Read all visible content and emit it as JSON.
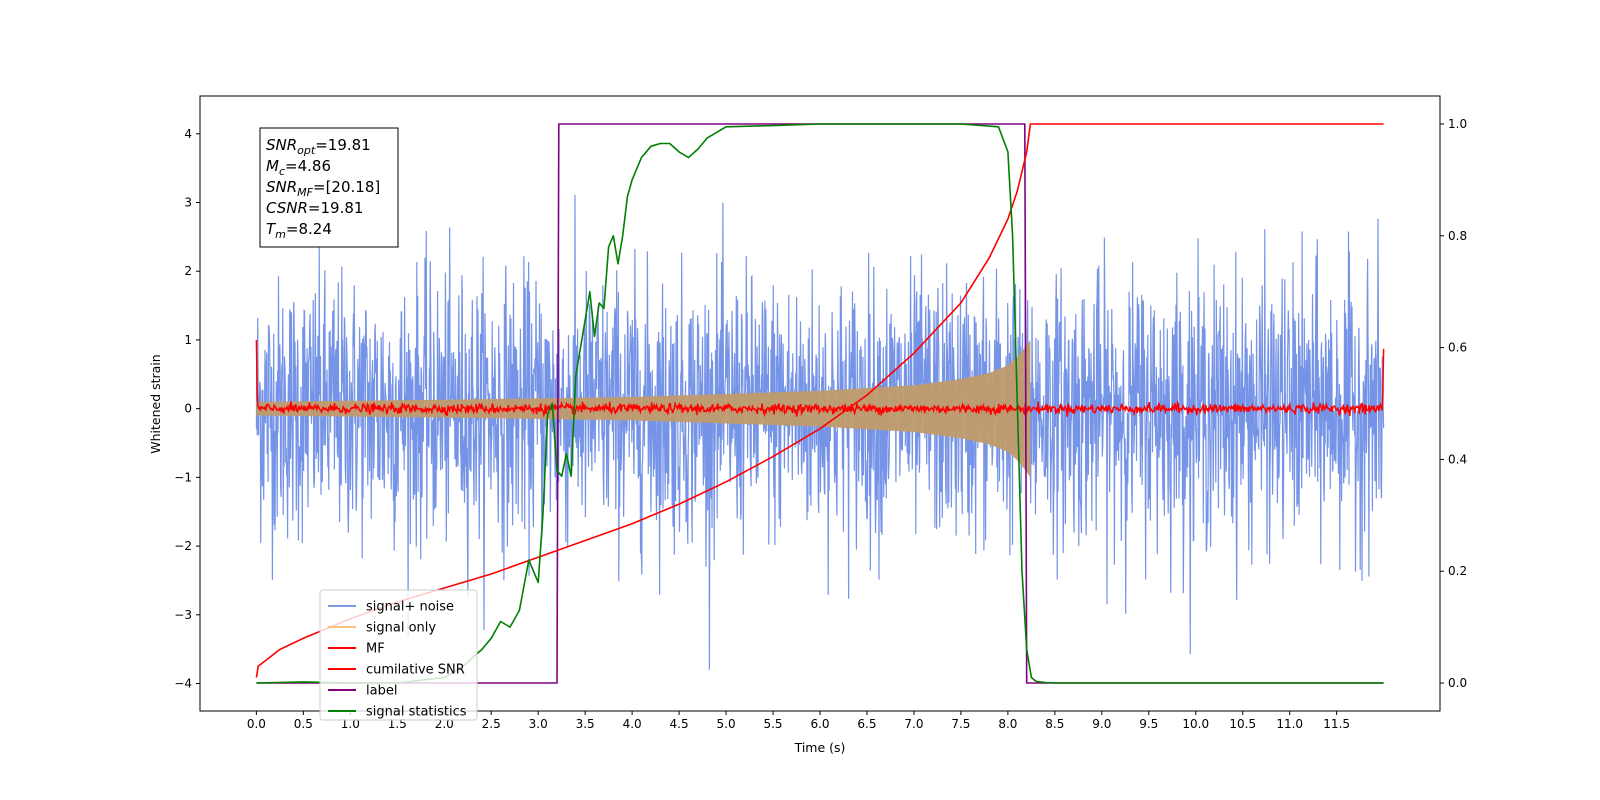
{
  "chart_data": {
    "type": "line",
    "title": "",
    "xlabel": "Time (s)",
    "ylabel": "Whitened strain",
    "xlim": [
      -0.6,
      12.6
    ],
    "ylim": [
      -4.4,
      4.55
    ],
    "y2lim": [
      -0.05,
      1.05
    ],
    "grid": false,
    "legend_position": "lower-left",
    "x_ticks": [
      "0.0",
      "0.5",
      "1.0",
      "1.5",
      "2.0",
      "2.5",
      "3.0",
      "3.5",
      "4.0",
      "4.5",
      "5.0",
      "5.5",
      "6.0",
      "6.5",
      "7.0",
      "7.5",
      "8.0",
      "8.5",
      "9.0",
      "9.5",
      "10.0",
      "10.5",
      "11.0",
      "11.5"
    ],
    "y_ticks": [
      "4",
      "3",
      "2",
      "1",
      "0",
      "−1",
      "−2",
      "−3",
      "−4"
    ],
    "y2_ticks": [
      "1.0",
      "0.8",
      "0.6",
      "0.4",
      "0.2",
      "0.0"
    ],
    "annotation": {
      "lines": [
        {
          "base": "SNR",
          "sub": "opt",
          "rest": "=19.81"
        },
        {
          "base": "M",
          "sub": "c",
          "rest": "=4.86"
        },
        {
          "base": "SNR",
          "sub": "MF",
          "rest": "=[20.18]"
        },
        {
          "base": "CSNR",
          "sub": "",
          "rest": "=19.81"
        },
        {
          "base": "T",
          "sub": "m",
          "rest": "=8.24"
        }
      ]
    },
    "series": [
      {
        "name": "signal+ noise",
        "color": "#6f8ee6",
        "axis": "left",
        "description_stats": {
          "x_range": [
            0.0,
            12.0
          ],
          "amplitude_range": [
            -3.8,
            4.2
          ]
        }
      },
      {
        "name": "signal only",
        "color": "#ffbf80",
        "axis": "left",
        "envelope": {
          "x": [
            0.0,
            2.0,
            4.0,
            6.0,
            7.0,
            7.5,
            7.8,
            8.0,
            8.1,
            8.2,
            8.24
          ],
          "amp": [
            0.1,
            0.13,
            0.17,
            0.26,
            0.34,
            0.43,
            0.52,
            0.63,
            0.75,
            0.92,
            1.0
          ]
        }
      },
      {
        "name": "MF",
        "color": "#ff0000",
        "axis": "left",
        "x_range": [
          0.0,
          12.0
        ],
        "level": 0.0,
        "edge_values": [
          1.0,
          0.87
        ]
      },
      {
        "name": "cumilative SNR",
        "color": "#ff0000",
        "axis": "right",
        "x": [
          0.0,
          0.02,
          0.25,
          0.5,
          1.0,
          1.5,
          2.0,
          2.5,
          3.0,
          3.5,
          4.0,
          4.5,
          5.0,
          5.5,
          6.0,
          6.5,
          7.0,
          7.5,
          7.8,
          8.0,
          8.1,
          8.2,
          8.24,
          12.0
        ],
        "y": [
          0.01,
          0.03,
          0.06,
          0.08,
          0.115,
          0.145,
          0.17,
          0.195,
          0.225,
          0.255,
          0.285,
          0.32,
          0.36,
          0.405,
          0.455,
          0.515,
          0.59,
          0.68,
          0.76,
          0.83,
          0.88,
          0.95,
          1.0,
          1.0
        ]
      },
      {
        "name": "label",
        "color": "#800080",
        "axis": "right",
        "x": [
          0.0,
          3.2,
          3.22,
          8.18,
          8.2,
          12.0
        ],
        "y": [
          0.0,
          0.0,
          1.0,
          1.0,
          0.0,
          0.0
        ]
      },
      {
        "name": "signal statistics",
        "color": "#008000",
        "axis": "right",
        "x": [
          0.0,
          0.5,
          1.0,
          1.5,
          2.0,
          2.2,
          2.4,
          2.5,
          2.6,
          2.7,
          2.8,
          2.9,
          3.0,
          3.05,
          3.1,
          3.15,
          3.2,
          3.25,
          3.3,
          3.35,
          3.4,
          3.45,
          3.5,
          3.55,
          3.6,
          3.65,
          3.7,
          3.75,
          3.8,
          3.85,
          3.9,
          3.95,
          4.0,
          4.1,
          4.2,
          4.3,
          4.4,
          4.5,
          4.6,
          4.7,
          4.8,
          5.0,
          5.5,
          6.0,
          6.5,
          7.0,
          7.5,
          7.9,
          8.0,
          8.05,
          8.1,
          8.15,
          8.2,
          8.25,
          8.3,
          8.4,
          8.5,
          9.0,
          10.0,
          11.0,
          12.0
        ],
        "y": [
          0.0,
          0.002,
          0.0,
          0.0,
          0.01,
          0.03,
          0.06,
          0.08,
          0.11,
          0.1,
          0.13,
          0.22,
          0.18,
          0.3,
          0.48,
          0.5,
          0.38,
          0.37,
          0.41,
          0.37,
          0.55,
          0.6,
          0.65,
          0.7,
          0.62,
          0.68,
          0.67,
          0.78,
          0.8,
          0.75,
          0.8,
          0.87,
          0.9,
          0.94,
          0.96,
          0.965,
          0.965,
          0.95,
          0.94,
          0.955,
          0.975,
          0.995,
          0.997,
          1.0,
          1.0,
          1.0,
          1.0,
          0.995,
          0.95,
          0.8,
          0.5,
          0.2,
          0.06,
          0.01,
          0.003,
          0.001,
          0.0,
          0.0,
          0.0,
          0.0,
          0.0
        ]
      }
    ]
  }
}
